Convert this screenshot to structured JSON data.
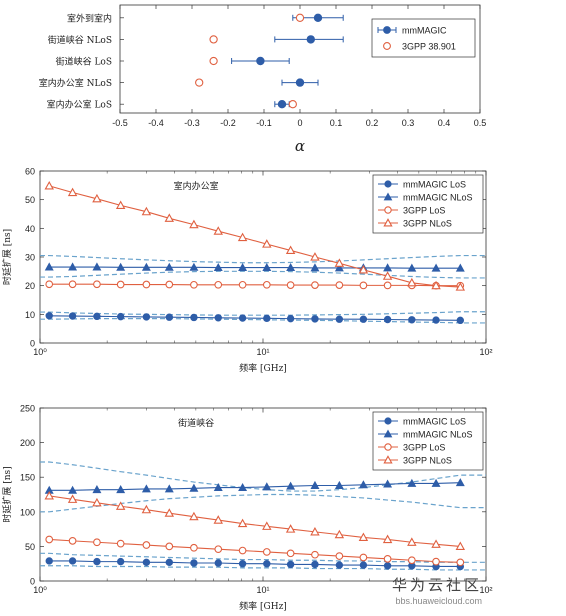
{
  "colors": {
    "blue": "#2e5da8",
    "orange": "#e06040",
    "dash": "#6aa3cc",
    "axis": "#333333"
  },
  "chart_data": [
    {
      "type": "scatter",
      "subtype": "errorbar",
      "xlabel": "α",
      "xlim": [
        -0.5,
        0.5
      ],
      "xticks": [
        "-0.5",
        "-0.4",
        "-0.3",
        "-0.2",
        "-0.1",
        "0",
        "0.1",
        "0.2",
        "0.3",
        "0.4",
        "0.5"
      ],
      "categories": [
        "室外到室内",
        "街道峡谷 NLoS",
        "街道峡谷 LoS",
        "室内办公室 NLoS",
        "室内办公室 LoS"
      ],
      "legend_position": "top-right",
      "series": [
        {
          "name": "mmMAGIC",
          "values": [
            0.05,
            0.03,
            -0.11,
            0.0,
            -0.05
          ],
          "err_low": [
            -0.02,
            -0.07,
            -0.19,
            -0.05,
            -0.07
          ],
          "err_high": [
            0.12,
            0.12,
            -0.03,
            0.05,
            -0.03
          ]
        },
        {
          "name": "3GPP 38.901",
          "values": [
            0.0,
            -0.24,
            -0.24,
            -0.28,
            -0.02
          ]
        }
      ]
    },
    {
      "type": "line",
      "annotation": "室内办公室",
      "xlabel": "频率 [GHz]",
      "ylabel": "时延扩展 [ns]",
      "xscale": "log",
      "xlim": [
        1,
        100
      ],
      "ylim": [
        0,
        60
      ],
      "yticks": [
        "0",
        "10",
        "20",
        "30",
        "40",
        "50",
        "60"
      ],
      "xticks": [
        {
          "v": 1,
          "label": "10⁰"
        },
        {
          "v": 10,
          "label": "10¹"
        },
        {
          "v": 100,
          "label": "10²"
        }
      ],
      "x": [
        1.1,
        1.4,
        1.8,
        2.3,
        3.0,
        3.8,
        4.9,
        6.3,
        8.1,
        10.4,
        13.3,
        17.1,
        22.0,
        28.2,
        36.2,
        46.5,
        59.7,
        76.7
      ],
      "legend_position": "top-right",
      "series": [
        {
          "name": "mmMAGIC LoS",
          "marker": "circle",
          "color": "blue",
          "values": [
            9.5,
            9.4,
            9.3,
            9.2,
            9.1,
            9.0,
            8.9,
            8.8,
            8.7,
            8.6,
            8.5,
            8.4,
            8.3,
            8.3,
            8.2,
            8.1,
            8.0,
            7.9
          ]
        },
        {
          "name": "mmMAGIC NLoS",
          "marker": "triangle",
          "color": "blue",
          "values": [
            26.5,
            26.5,
            26.5,
            26.4,
            26.4,
            26.4,
            26.4,
            26.3,
            26.3,
            26.3,
            26.3,
            26.2,
            26.2,
            26.2,
            26.2,
            26.1,
            26.1,
            26.1
          ]
        },
        {
          "name": "3GPP LoS",
          "marker": "circle-open",
          "color": "orange",
          "values": [
            20.5,
            20.5,
            20.5,
            20.4,
            20.4,
            20.4,
            20.3,
            20.3,
            20.3,
            20.3,
            20.2,
            20.2,
            20.2,
            20.1,
            20.1,
            20.1,
            20.0,
            20.0
          ]
        },
        {
          "name": "3GPP NLoS",
          "marker": "triangle-open",
          "color": "orange",
          "values": [
            54.8,
            52.5,
            50.3,
            48.0,
            45.8,
            43.5,
            41.3,
            39.0,
            36.8,
            34.5,
            32.3,
            30.0,
            27.8,
            25.5,
            23.3,
            21.0,
            20.0,
            19.5
          ]
        }
      ],
      "dashed_bounds": [
        {
          "values": [
            30.5,
            30.2,
            29.8,
            29.4,
            29.0,
            28.7,
            28.4,
            28.2,
            28.0,
            28.0,
            28.1,
            28.3,
            28.6,
            29.0,
            29.4,
            29.8,
            30.2,
            30.5
          ]
        },
        {
          "values": [
            23.0,
            23.2,
            23.6,
            24.0,
            24.4,
            24.7,
            24.9,
            25.0,
            25.0,
            25.0,
            24.9,
            24.7,
            24.4,
            24.0,
            23.6,
            23.2,
            22.9,
            22.7
          ]
        },
        {
          "values": [
            10.8,
            10.5,
            10.3,
            10.1,
            10.0,
            9.9,
            9.8,
            9.7,
            9.7,
            9.7,
            9.7,
            9.8,
            9.9,
            10.0,
            10.2,
            10.4,
            10.6,
            10.9
          ]
        },
        {
          "values": [
            8.3,
            8.4,
            8.5,
            8.5,
            8.5,
            8.5,
            8.4,
            8.3,
            8.2,
            8.1,
            8.0,
            7.9,
            7.8,
            7.6,
            7.5,
            7.3,
            7.2,
            7.0
          ]
        }
      ]
    },
    {
      "type": "line",
      "annotation": "街道峡谷",
      "xlabel": "频率 [GHz]",
      "ylabel": "时延扩展 [ns]",
      "xscale": "log",
      "xlim": [
        1,
        100
      ],
      "ylim": [
        0,
        250
      ],
      "yticks": [
        "0",
        "50",
        "100",
        "150",
        "200",
        "250"
      ],
      "xticks": [
        {
          "v": 1,
          "label": "10⁰"
        },
        {
          "v": 10,
          "label": "10¹"
        },
        {
          "v": 100,
          "label": "10²"
        }
      ],
      "x": [
        1.1,
        1.4,
        1.8,
        2.3,
        3.0,
        3.8,
        4.9,
        6.3,
        8.1,
        10.4,
        13.3,
        17.1,
        22.0,
        28.2,
        36.2,
        46.5,
        59.7,
        76.7
      ],
      "legend_position": "top-right",
      "series": [
        {
          "name": "mmMAGIC LoS",
          "marker": "circle",
          "color": "blue",
          "values": [
            29,
            29,
            28,
            28,
            27,
            27,
            26,
            26,
            25,
            25,
            24,
            24,
            23,
            23,
            22,
            22,
            21,
            21
          ]
        },
        {
          "name": "mmMAGIC NLoS",
          "marker": "triangle",
          "color": "blue",
          "values": [
            131,
            131,
            132,
            132,
            133,
            133,
            134,
            135,
            135,
            136,
            137,
            138,
            138,
            139,
            140,
            141,
            141,
            142
          ]
        },
        {
          "name": "3GPP LoS",
          "marker": "circle-open",
          "color": "orange",
          "values": [
            60,
            58,
            56,
            54,
            52,
            50,
            48,
            46,
            44,
            42,
            40,
            38,
            36,
            34,
            32,
            30,
            28,
            27
          ]
        },
        {
          "name": "3GPP NLoS",
          "marker": "triangle-open",
          "color": "orange",
          "values": [
            123,
            118,
            113,
            108,
            103,
            98,
            93,
            88,
            83,
            79,
            75,
            71,
            67,
            63,
            60,
            56,
            53,
            50
          ]
        }
      ],
      "dashed_bounds": [
        {
          "values": [
            172,
            168,
            163,
            158,
            153,
            148,
            143,
            139,
            135,
            132,
            130,
            130,
            132,
            135,
            139,
            143,
            148,
            153
          ]
        },
        {
          "values": [
            100,
            104,
            108,
            112,
            116,
            119,
            121,
            123,
            124,
            125,
            125,
            124,
            122,
            120,
            117,
            114,
            110,
            106
          ]
        },
        {
          "values": [
            40,
            38,
            37,
            36,
            35,
            34,
            33,
            32,
            31,
            31,
            30,
            30,
            29,
            29,
            28,
            28,
            27,
            27
          ]
        },
        {
          "values": [
            22,
            22,
            21,
            21,
            21,
            20,
            20,
            20,
            19,
            19,
            19,
            18,
            18,
            18,
            17,
            17,
            16,
            16
          ]
        }
      ]
    }
  ],
  "watermark": {
    "cn": "华为云社区",
    "url": "bbs.huaweicloud.com"
  }
}
